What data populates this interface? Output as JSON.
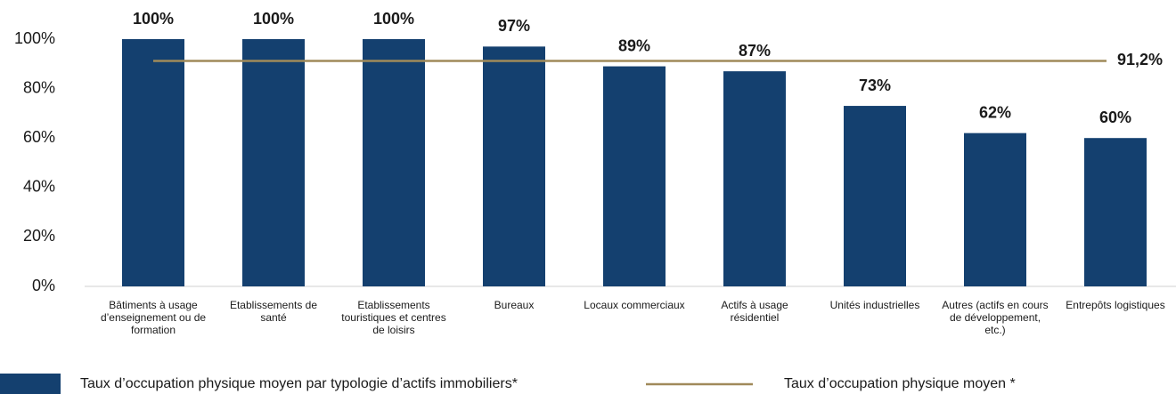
{
  "chart_data": {
    "type": "bar",
    "categories": [
      "Bâtiments à usage d’enseignement ou de formation",
      "Etablissements de santé",
      "Etablissements touristiques et centres de loisirs",
      "Bureaux",
      "Locaux commerciaux",
      "Actifs à usage résidentiel",
      "Unités industrielles",
      "Autres (actifs en cours de développement, etc.)",
      "Entrepôts logistiques"
    ],
    "series": [
      {
        "name": "Taux d’occupation physique moyen par typologie d’actifs immobiliers*",
        "color": "#14406f",
        "values": [
          100,
          100,
          100,
          97,
          89,
          87,
          73,
          62,
          60
        ],
        "value_labels": [
          "100%",
          "100%",
          "100%",
          "97%",
          "89%",
          "87%",
          "73%",
          "62%",
          "60%"
        ]
      }
    ],
    "reference_line": {
      "name": "Taux d’occupation physique moyen *",
      "value": 91.2,
      "label": "91,2%",
      "color": "#a08a5a"
    },
    "ylim": [
      0,
      100
    ],
    "yticks": [
      {
        "value": 0,
        "label": "0%"
      },
      {
        "value": 20,
        "label": "20%"
      },
      {
        "value": 40,
        "label": "40%"
      },
      {
        "value": 60,
        "label": "60%"
      },
      {
        "value": 80,
        "label": "80%"
      },
      {
        "value": 100,
        "label": "100%"
      }
    ]
  }
}
